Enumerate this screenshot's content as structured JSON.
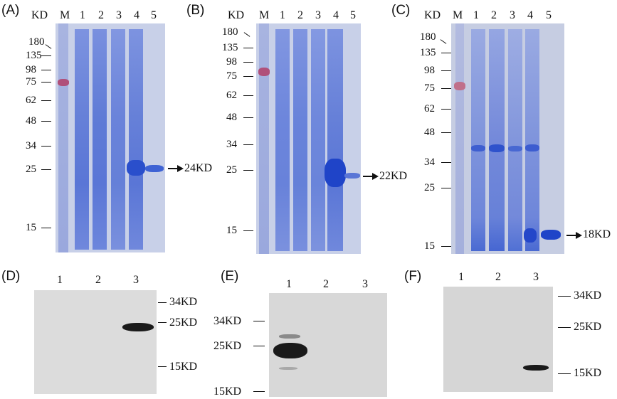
{
  "panels": {
    "A": {
      "label": "(A)",
      "unit": "KD",
      "lanes": [
        "M",
        "1",
        "2",
        "3",
        "4",
        "5"
      ],
      "markers": [
        "180",
        "135",
        "98",
        "75",
        "62",
        "48",
        "34",
        "25",
        "15"
      ],
      "target": "24KD"
    },
    "B": {
      "label": "(B)",
      "unit": "KD",
      "lanes": [
        "M",
        "1",
        "2",
        "3",
        "4",
        "5"
      ],
      "markers": [
        "180",
        "135",
        "98",
        "75",
        "62",
        "48",
        "34",
        "25",
        "15"
      ],
      "target": "22KD"
    },
    "C": {
      "label": "(C)",
      "unit": "KD",
      "lanes": [
        "M",
        "1",
        "2",
        "3",
        "4",
        "5"
      ],
      "markers": [
        "180",
        "135",
        "98",
        "75",
        "62",
        "48",
        "34",
        "25",
        "15"
      ],
      "target": "18KD"
    },
    "D": {
      "label": "(D)",
      "lanes": [
        "1",
        "2",
        "3"
      ],
      "markers": [
        "34KD",
        "25KD",
        "15KD"
      ]
    },
    "E": {
      "label": "(E)",
      "lanes": [
        "1",
        "2",
        "3"
      ],
      "markers": [
        "34KD",
        "25KD",
        "15KD"
      ]
    },
    "F": {
      "label": "(F)",
      "lanes": [
        "1",
        "2",
        "3"
      ],
      "markers": [
        "34KD",
        "25KD",
        "15KD"
      ]
    }
  },
  "colors": {
    "gel_background": "#c8d0e8",
    "coomassie_band": "#3a5fcf",
    "blot_background": "#dcdcdc",
    "blot_band": "#1a1a1a"
  }
}
